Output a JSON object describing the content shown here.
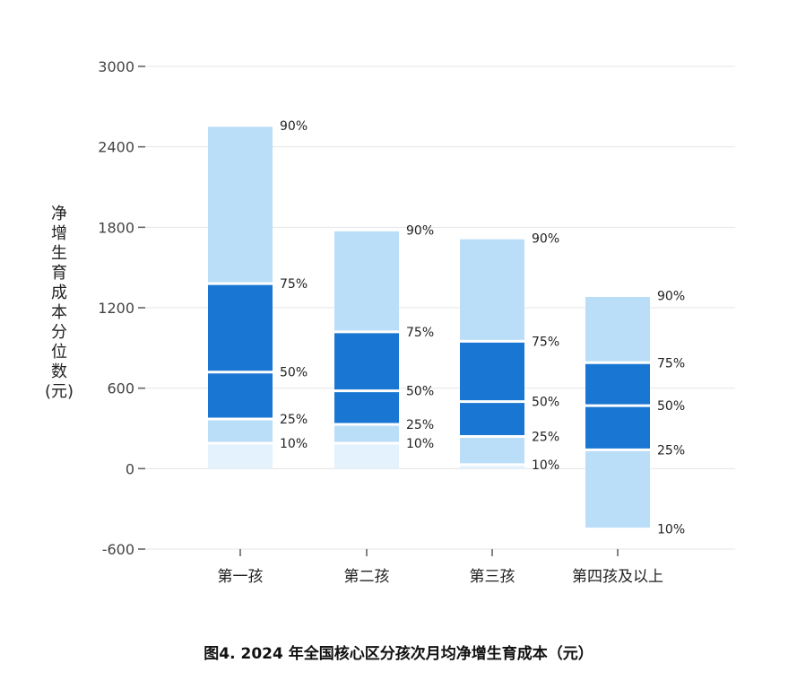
{
  "chart_data": {
    "type": "bar",
    "title": "图4. 2024 年全国核心区分孩次月均净增生育成本（元）",
    "ylabel_chars": [
      "净",
      "增",
      "生",
      "育",
      "成",
      "本",
      "分",
      "位",
      "数",
      "(元)"
    ],
    "ylim": [
      -600,
      3000
    ],
    "yticks": [
      3000,
      2400,
      1800,
      1200,
      600,
      0,
      -600
    ],
    "grid": true,
    "categories": [
      "第一孩",
      "第二孩",
      "第三孩",
      "第四孩及以上"
    ],
    "percentile_labels": [
      "10%",
      "25%",
      "50%",
      "75%",
      "90%"
    ],
    "series": [
      {
        "category": "第一孩",
        "p10": 190,
        "p25": 370,
        "p50": 720,
        "p75": 1380,
        "p90": 2560
      },
      {
        "category": "第二孩",
        "p10": 190,
        "p25": 330,
        "p50": 580,
        "p75": 1020,
        "p90": 1780
      },
      {
        "category": "第三孩",
        "p10": 30,
        "p25": 240,
        "p50": 500,
        "p75": 950,
        "p90": 1720
      },
      {
        "category": "第四孩及以上",
        "p10": -450,
        "p25": 140,
        "p50": 470,
        "p75": 790,
        "p90": 1290
      }
    ],
    "colors": {
      "light": "#BBDEF8",
      "dark": "#1976D2",
      "lightest": "#E3F2FD",
      "grid": "#E4E4E4",
      "axis": "#666666"
    }
  }
}
